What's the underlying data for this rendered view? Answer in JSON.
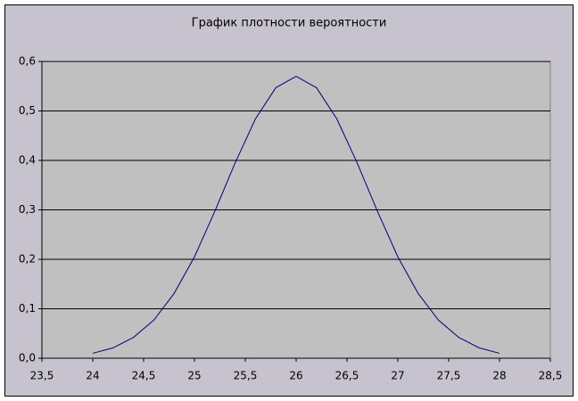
{
  "chart_data": {
    "type": "line",
    "title": "График плотности вероятности",
    "x": [
      24,
      24.2,
      24.4,
      24.6,
      24.8,
      25,
      25.2,
      25.4,
      25.6,
      25.8,
      26,
      26.2,
      26.4,
      26.6,
      26.8,
      27,
      27.2,
      27.4,
      27.6,
      27.8,
      28
    ],
    "series": [
      {
        "color": "#000080",
        "values": [
          0.01,
          0.021,
          0.042,
          0.077,
          0.131,
          0.205,
          0.297,
          0.395,
          0.484,
          0.547,
          0.57,
          0.547,
          0.484,
          0.395,
          0.297,
          0.205,
          0.131,
          0.077,
          0.042,
          0.021,
          0.01
        ]
      }
    ],
    "xlim": [
      23.5,
      28.5
    ],
    "xticks": [
      {
        "value": 23.5,
        "label": "23,5"
      },
      24,
      {
        "value": 24.5,
        "label": "24,5"
      },
      25,
      {
        "value": 25.5,
        "label": "25,5"
      },
      26,
      {
        "value": 26.5,
        "label": "26,5"
      },
      27,
      {
        "value": 27.5,
        "label": "27,5"
      },
      28,
      {
        "value": 28.5,
        "label": "28,5"
      }
    ],
    "ylim": [
      0,
      0.6
    ],
    "yticks": [
      {
        "value": 0,
        "label": "0,0"
      },
      {
        "value": 0.1,
        "label": "0,1"
      },
      {
        "value": 0.2,
        "label": "0,2"
      },
      {
        "value": 0.3,
        "label": "0,3"
      },
      {
        "value": 0.4,
        "label": "0,4"
      },
      {
        "value": 0.5,
        "label": "0,5"
      },
      {
        "value": 0.6,
        "label": "0,6"
      }
    ],
    "grid": true
  }
}
